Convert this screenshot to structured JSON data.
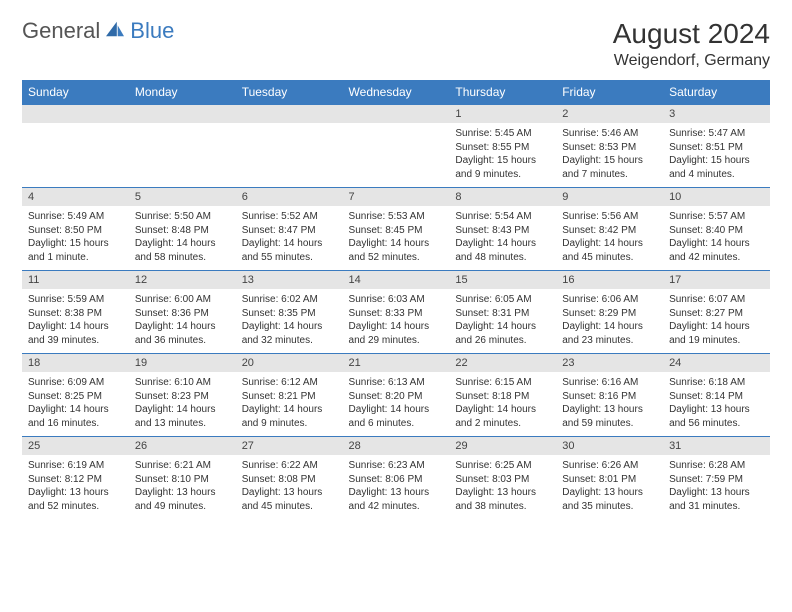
{
  "brand": {
    "part1": "General",
    "part2": "Blue"
  },
  "title": "August 2024",
  "subtitle": "Weigendorf, Germany",
  "weekdays": [
    "Sunday",
    "Monday",
    "Tuesday",
    "Wednesday",
    "Thursday",
    "Friday",
    "Saturday"
  ],
  "colors": {
    "header_bg": "#3b7bbf",
    "header_text": "#ffffff",
    "daynum_bg": "#e5e5e5",
    "border": "#3b7bbf",
    "text": "#333333",
    "logo_accent": "#3b7bbf"
  },
  "typography": {
    "title_fontsize": 28,
    "subtitle_fontsize": 16,
    "weekday_fontsize": 12,
    "daynum_fontsize": 11,
    "cell_fontsize": 10
  },
  "weeks": [
    {
      "nums": [
        "",
        "",
        "",
        "",
        "1",
        "2",
        "3"
      ],
      "cells": [
        null,
        null,
        null,
        null,
        {
          "sunrise": "Sunrise: 5:45 AM",
          "sunset": "Sunset: 8:55 PM",
          "daylight1": "Daylight: 15 hours",
          "daylight2": "and 9 minutes."
        },
        {
          "sunrise": "Sunrise: 5:46 AM",
          "sunset": "Sunset: 8:53 PM",
          "daylight1": "Daylight: 15 hours",
          "daylight2": "and 7 minutes."
        },
        {
          "sunrise": "Sunrise: 5:47 AM",
          "sunset": "Sunset: 8:51 PM",
          "daylight1": "Daylight: 15 hours",
          "daylight2": "and 4 minutes."
        }
      ]
    },
    {
      "nums": [
        "4",
        "5",
        "6",
        "7",
        "8",
        "9",
        "10"
      ],
      "cells": [
        {
          "sunrise": "Sunrise: 5:49 AM",
          "sunset": "Sunset: 8:50 PM",
          "daylight1": "Daylight: 15 hours",
          "daylight2": "and 1 minute."
        },
        {
          "sunrise": "Sunrise: 5:50 AM",
          "sunset": "Sunset: 8:48 PM",
          "daylight1": "Daylight: 14 hours",
          "daylight2": "and 58 minutes."
        },
        {
          "sunrise": "Sunrise: 5:52 AM",
          "sunset": "Sunset: 8:47 PM",
          "daylight1": "Daylight: 14 hours",
          "daylight2": "and 55 minutes."
        },
        {
          "sunrise": "Sunrise: 5:53 AM",
          "sunset": "Sunset: 8:45 PM",
          "daylight1": "Daylight: 14 hours",
          "daylight2": "and 52 minutes."
        },
        {
          "sunrise": "Sunrise: 5:54 AM",
          "sunset": "Sunset: 8:43 PM",
          "daylight1": "Daylight: 14 hours",
          "daylight2": "and 48 minutes."
        },
        {
          "sunrise": "Sunrise: 5:56 AM",
          "sunset": "Sunset: 8:42 PM",
          "daylight1": "Daylight: 14 hours",
          "daylight2": "and 45 minutes."
        },
        {
          "sunrise": "Sunrise: 5:57 AM",
          "sunset": "Sunset: 8:40 PM",
          "daylight1": "Daylight: 14 hours",
          "daylight2": "and 42 minutes."
        }
      ]
    },
    {
      "nums": [
        "11",
        "12",
        "13",
        "14",
        "15",
        "16",
        "17"
      ],
      "cells": [
        {
          "sunrise": "Sunrise: 5:59 AM",
          "sunset": "Sunset: 8:38 PM",
          "daylight1": "Daylight: 14 hours",
          "daylight2": "and 39 minutes."
        },
        {
          "sunrise": "Sunrise: 6:00 AM",
          "sunset": "Sunset: 8:36 PM",
          "daylight1": "Daylight: 14 hours",
          "daylight2": "and 36 minutes."
        },
        {
          "sunrise": "Sunrise: 6:02 AM",
          "sunset": "Sunset: 8:35 PM",
          "daylight1": "Daylight: 14 hours",
          "daylight2": "and 32 minutes."
        },
        {
          "sunrise": "Sunrise: 6:03 AM",
          "sunset": "Sunset: 8:33 PM",
          "daylight1": "Daylight: 14 hours",
          "daylight2": "and 29 minutes."
        },
        {
          "sunrise": "Sunrise: 6:05 AM",
          "sunset": "Sunset: 8:31 PM",
          "daylight1": "Daylight: 14 hours",
          "daylight2": "and 26 minutes."
        },
        {
          "sunrise": "Sunrise: 6:06 AM",
          "sunset": "Sunset: 8:29 PM",
          "daylight1": "Daylight: 14 hours",
          "daylight2": "and 23 minutes."
        },
        {
          "sunrise": "Sunrise: 6:07 AM",
          "sunset": "Sunset: 8:27 PM",
          "daylight1": "Daylight: 14 hours",
          "daylight2": "and 19 minutes."
        }
      ]
    },
    {
      "nums": [
        "18",
        "19",
        "20",
        "21",
        "22",
        "23",
        "24"
      ],
      "cells": [
        {
          "sunrise": "Sunrise: 6:09 AM",
          "sunset": "Sunset: 8:25 PM",
          "daylight1": "Daylight: 14 hours",
          "daylight2": "and 16 minutes."
        },
        {
          "sunrise": "Sunrise: 6:10 AM",
          "sunset": "Sunset: 8:23 PM",
          "daylight1": "Daylight: 14 hours",
          "daylight2": "and 13 minutes."
        },
        {
          "sunrise": "Sunrise: 6:12 AM",
          "sunset": "Sunset: 8:21 PM",
          "daylight1": "Daylight: 14 hours",
          "daylight2": "and 9 minutes."
        },
        {
          "sunrise": "Sunrise: 6:13 AM",
          "sunset": "Sunset: 8:20 PM",
          "daylight1": "Daylight: 14 hours",
          "daylight2": "and 6 minutes."
        },
        {
          "sunrise": "Sunrise: 6:15 AM",
          "sunset": "Sunset: 8:18 PM",
          "daylight1": "Daylight: 14 hours",
          "daylight2": "and 2 minutes."
        },
        {
          "sunrise": "Sunrise: 6:16 AM",
          "sunset": "Sunset: 8:16 PM",
          "daylight1": "Daylight: 13 hours",
          "daylight2": "and 59 minutes."
        },
        {
          "sunrise": "Sunrise: 6:18 AM",
          "sunset": "Sunset: 8:14 PM",
          "daylight1": "Daylight: 13 hours",
          "daylight2": "and 56 minutes."
        }
      ]
    },
    {
      "nums": [
        "25",
        "26",
        "27",
        "28",
        "29",
        "30",
        "31"
      ],
      "cells": [
        {
          "sunrise": "Sunrise: 6:19 AM",
          "sunset": "Sunset: 8:12 PM",
          "daylight1": "Daylight: 13 hours",
          "daylight2": "and 52 minutes."
        },
        {
          "sunrise": "Sunrise: 6:21 AM",
          "sunset": "Sunset: 8:10 PM",
          "daylight1": "Daylight: 13 hours",
          "daylight2": "and 49 minutes."
        },
        {
          "sunrise": "Sunrise: 6:22 AM",
          "sunset": "Sunset: 8:08 PM",
          "daylight1": "Daylight: 13 hours",
          "daylight2": "and 45 minutes."
        },
        {
          "sunrise": "Sunrise: 6:23 AM",
          "sunset": "Sunset: 8:06 PM",
          "daylight1": "Daylight: 13 hours",
          "daylight2": "and 42 minutes."
        },
        {
          "sunrise": "Sunrise: 6:25 AM",
          "sunset": "Sunset: 8:03 PM",
          "daylight1": "Daylight: 13 hours",
          "daylight2": "and 38 minutes."
        },
        {
          "sunrise": "Sunrise: 6:26 AM",
          "sunset": "Sunset: 8:01 PM",
          "daylight1": "Daylight: 13 hours",
          "daylight2": "and 35 minutes."
        },
        {
          "sunrise": "Sunrise: 6:28 AM",
          "sunset": "Sunset: 7:59 PM",
          "daylight1": "Daylight: 13 hours",
          "daylight2": "and 31 minutes."
        }
      ]
    }
  ]
}
